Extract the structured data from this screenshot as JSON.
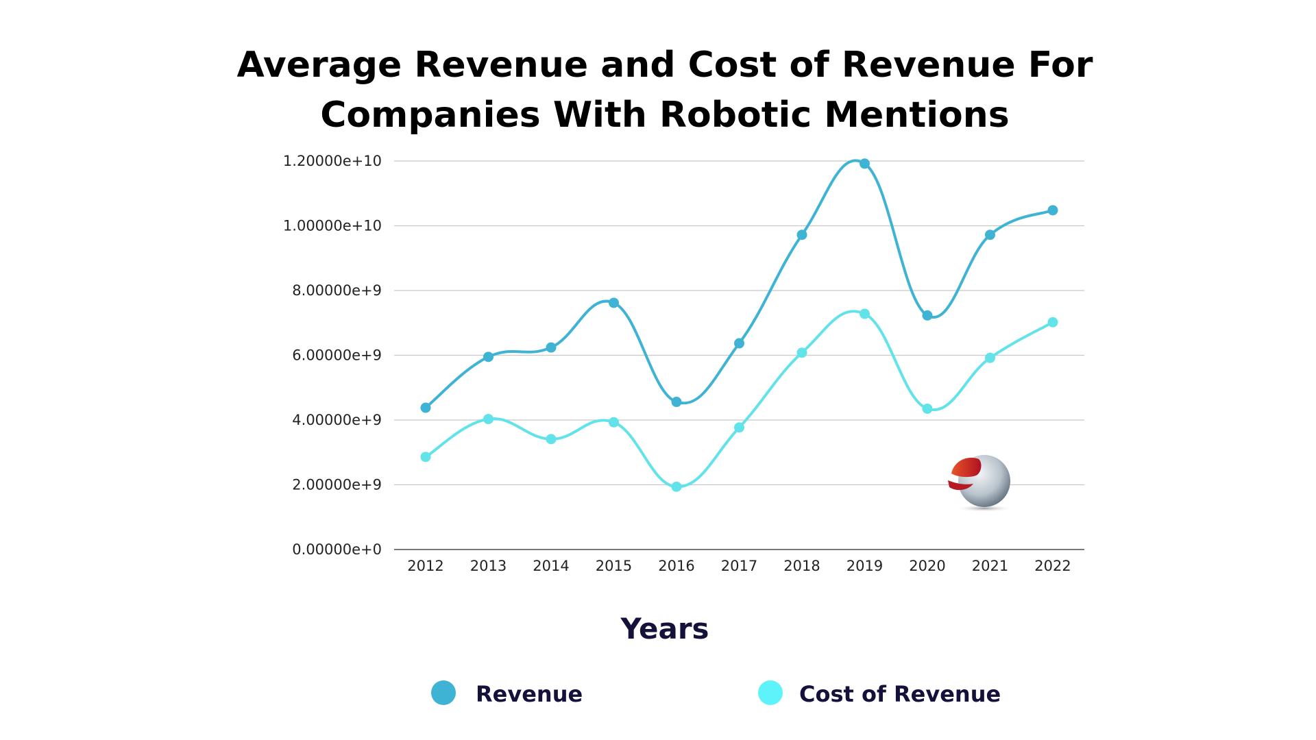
{
  "chart_data": {
    "type": "line",
    "title": [
      "Average Revenue and Cost of Revenue For",
      "Companies With Robotic Mentions"
    ],
    "xlabel": "Years",
    "ylabel": "",
    "categories": [
      "2012",
      "2013",
      "2014",
      "2015",
      "2016",
      "2017",
      "2018",
      "2019",
      "2020",
      "2021",
      "2022"
    ],
    "ylim": [
      0,
      12000000000
    ],
    "yticks": [
      0,
      2000000000,
      4000000000,
      6000000000,
      8000000000,
      10000000000,
      12000000000
    ],
    "ytick_labels": [
      "0.00000e+0",
      "2.00000e+9",
      "4.00000e+9",
      "6.00000e+9",
      "8.00000e+9",
      "1.00000e+10",
      "1.20000e+10"
    ],
    "grid": true,
    "legend_position": "bottom",
    "smooth": true,
    "series": [
      {
        "name": "Revenue",
        "color": "#3fb3d3",
        "values": [
          4380000000,
          5950000000,
          6240000000,
          7620000000,
          4560000000,
          6370000000,
          9720000000,
          11920000000,
          7230000000,
          9720000000,
          10480000000
        ]
      },
      {
        "name": "Cost of Revenue",
        "color": "#62e3ea",
        "values": [
          2860000000,
          4030000000,
          3410000000,
          3930000000,
          1940000000,
          3770000000,
          6080000000,
          7280000000,
          4350000000,
          5920000000,
          7020000000
        ]
      }
    ]
  },
  "legend_colors": {
    "Revenue": "#3fb3d3",
    "Cost of Revenue": "#5ef3fb"
  },
  "logo": {
    "icon": "sphere-logo-icon"
  }
}
